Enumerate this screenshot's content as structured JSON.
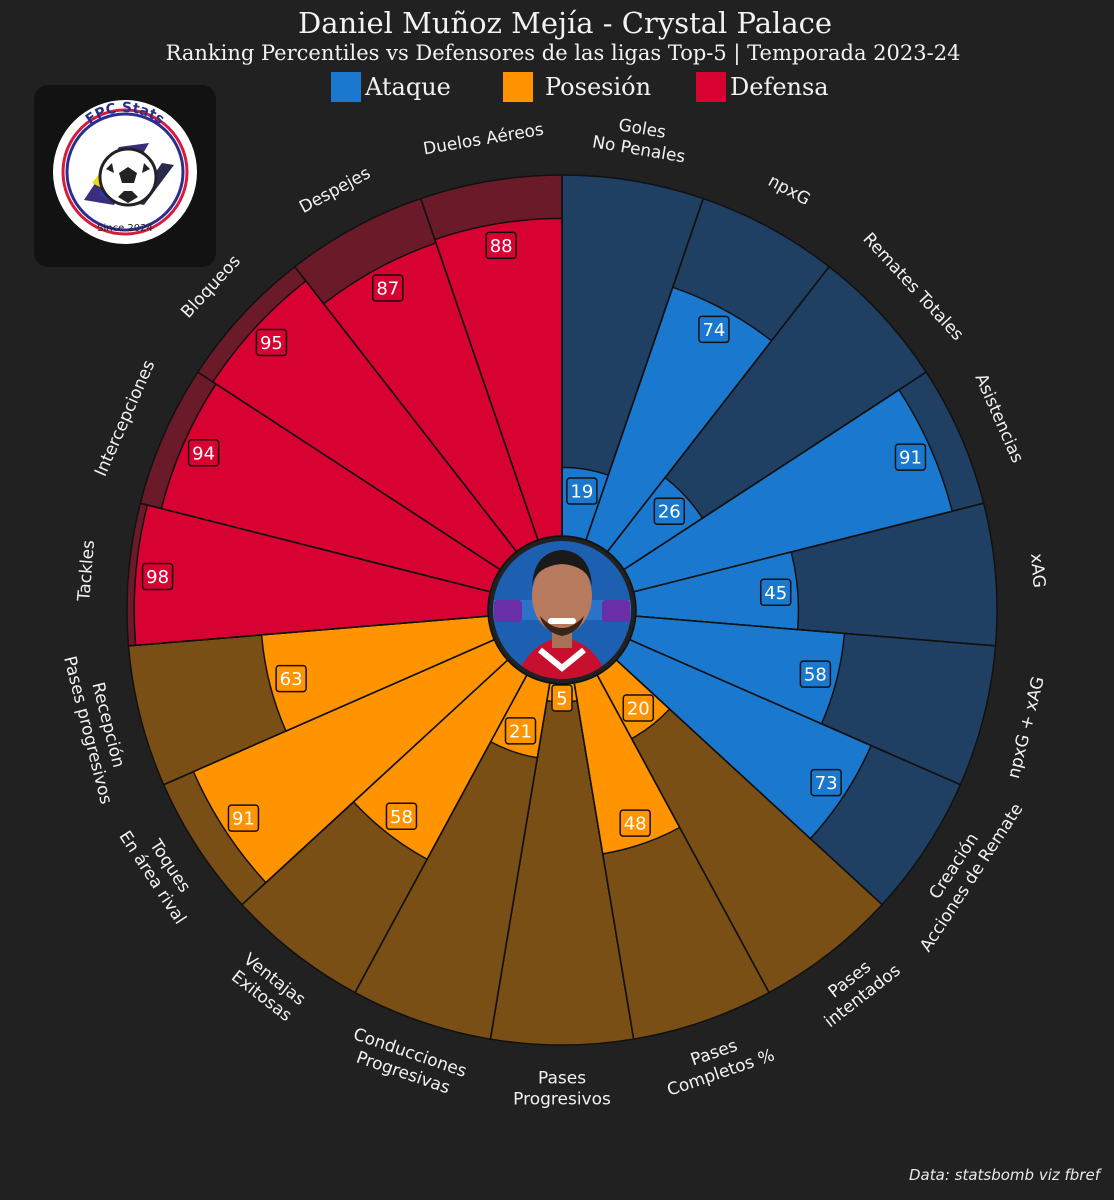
{
  "header": {
    "title": "Daniel Muñoz Mejía - Crystal Palace",
    "subtitle": "Ranking Percentiles vs Defensores de las ligas Top-5 | Temporada 2023-24"
  },
  "legend": [
    {
      "label": "Ataque",
      "color": "#1a78cf"
    },
    {
      "label": "Posesión",
      "color": "#ff9300"
    },
    {
      "label": "Defensa",
      "color": "#d70232"
    }
  ],
  "logo": {
    "top_text": "FPC Stats",
    "bottom_text": "Since 2024",
    "icon": "soccer-ball-icon"
  },
  "player_photo": {
    "icon": "player-portrait-icon"
  },
  "credit": "Data: statsbomb viz fbref",
  "chart_data": {
    "type": "pizza",
    "range": [
      0,
      100
    ],
    "groups": [
      {
        "name": "Ataque",
        "color": "#1a78cf",
        "background": "#1f3f63"
      },
      {
        "name": "Posesión",
        "color": "#ff9300",
        "background": "#7a4f16"
      },
      {
        "name": "Defensa",
        "color": "#d70232",
        "background": "#6b1a29"
      }
    ],
    "categories": [
      {
        "label": [
          "Goles",
          "No Penales"
        ],
        "value": 19,
        "group": "Ataque"
      },
      {
        "label": [
          "npxG"
        ],
        "value": 74,
        "group": "Ataque"
      },
      {
        "label": [
          "Remates Totales"
        ],
        "value": 26,
        "group": "Ataque"
      },
      {
        "label": [
          "Asistencias"
        ],
        "value": 91,
        "group": "Ataque"
      },
      {
        "label": [
          "xAG"
        ],
        "value": 45,
        "group": "Ataque"
      },
      {
        "label": [
          "npxG + xAG"
        ],
        "value": 58,
        "group": "Ataque"
      },
      {
        "label": [
          "Creación",
          "Acciones de Remate"
        ],
        "value": 73,
        "group": "Ataque"
      },
      {
        "label": [
          "Pases",
          "intentados"
        ],
        "value": 20,
        "group": "Posesión"
      },
      {
        "label": [
          "Pases",
          "Completos %"
        ],
        "value": 48,
        "group": "Posesión"
      },
      {
        "label": [
          "Pases",
          "Progresivos"
        ],
        "value": 5,
        "group": "Posesión"
      },
      {
        "label": [
          "Conducciones",
          "Progresivas"
        ],
        "value": 21,
        "group": "Posesión"
      },
      {
        "label": [
          "Ventajas",
          "Exitosas"
        ],
        "value": 58,
        "group": "Posesión"
      },
      {
        "label": [
          "Toques",
          "En área rival"
        ],
        "value": 91,
        "group": "Posesión"
      },
      {
        "label": [
          "Recepción",
          "Pases progresivos"
        ],
        "value": 63,
        "group": "Posesión"
      },
      {
        "label": [
          "Tackles"
        ],
        "value": 98,
        "group": "Defensa"
      },
      {
        "label": [
          "Intercepciones"
        ],
        "value": 94,
        "group": "Defensa"
      },
      {
        "label": [
          "Bloqueos"
        ],
        "value": 95,
        "group": "Defensa"
      },
      {
        "label": [
          "Despejes"
        ],
        "value": 87,
        "group": "Defensa"
      },
      {
        "label": [
          "Duelos Aéreos"
        ],
        "value": 88,
        "group": "Defensa"
      }
    ]
  }
}
